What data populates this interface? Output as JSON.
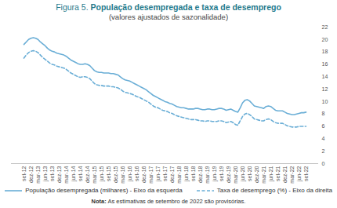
{
  "chart_data": {
    "type": "line",
    "title": "Figura 5. População desempregada e taxa de desemprego",
    "subtitle": "(valores ajustados de sazonalidade)",
    "caption": "Nota: As estimativas de setembro de 2022 são provisórias.",
    "categories": [
      "set-12",
      null,
      null,
      "dez-12",
      null,
      null,
      "mar-13",
      null,
      null,
      "jun-13",
      null,
      null,
      "set-13",
      null,
      null,
      "dez-13",
      null,
      null,
      "mar-14",
      null,
      null,
      "jun-14",
      null,
      null,
      "set-14",
      null,
      null,
      "dez-14",
      null,
      null,
      "mar-15",
      null,
      null,
      "jun-15",
      null,
      null,
      "set-15",
      null,
      null,
      "dez-15",
      null,
      null,
      "mar-16",
      null,
      null,
      "jun-16",
      null,
      null,
      "set-16",
      null,
      null,
      "dez-16",
      null,
      null,
      "mar-17",
      null,
      null,
      "jun-17",
      null,
      null,
      "set-17",
      null,
      null,
      "dez-17",
      null,
      null,
      "mar-18",
      null,
      null,
      "jun-18",
      null,
      null,
      "set-18",
      null,
      null,
      "dez-18",
      null,
      null,
      "mar-19",
      null,
      null,
      "jun-19",
      null,
      null,
      "set-19",
      null,
      null,
      "dez-19",
      null,
      null,
      "mar-20",
      null,
      null,
      "jun-20",
      null,
      null,
      "set-20",
      null,
      null,
      "dez-20",
      null,
      null,
      "mar-21",
      null,
      null,
      "jun-21",
      null,
      null,
      "set-21",
      null,
      null,
      "dez-21",
      null,
      null,
      "mar-22",
      null,
      null,
      "jun-22",
      null,
      null,
      "set-22"
    ],
    "series": [
      {
        "name": "População desempregada (milhares) - Eixo da esquerda",
        "color": "#6aaed6",
        "line_style": "solid",
        "values": [
          19.2,
          19.6,
          20.0,
          20.2,
          20.3,
          20.2,
          20.0,
          19.6,
          19.3,
          19.0,
          18.6,
          18.3,
          18.1,
          18.0,
          17.8,
          17.7,
          17.6,
          17.5,
          17.3,
          17.0,
          16.7,
          16.5,
          16.3,
          16.1,
          16.0,
          16.0,
          16.1,
          16.0,
          15.8,
          15.4,
          15.0,
          14.8,
          14.7,
          14.7,
          14.6,
          14.6,
          14.6,
          14.5,
          14.5,
          14.4,
          14.3,
          14.0,
          13.7,
          13.5,
          13.4,
          13.3,
          13.1,
          12.9,
          12.7,
          12.5,
          12.3,
          12.1,
          11.9,
          11.6,
          11.3,
          11.0,
          10.8,
          10.6,
          10.4,
          10.2,
          10.0,
          9.9,
          9.7,
          9.6,
          9.4,
          9.2,
          9.1,
          9.0,
          9.0,
          8.9,
          8.8,
          8.8,
          8.8,
          8.9,
          8.9,
          8.8,
          8.7,
          8.7,
          8.8,
          8.8,
          8.7,
          8.7,
          8.8,
          8.9,
          8.9,
          8.8,
          8.6,
          8.7,
          8.8,
          8.6,
          8.4,
          8.3,
          9.0,
          9.8,
          10.2,
          10.3,
          10.1,
          9.7,
          9.3,
          9.2,
          9.1,
          9.0,
          8.9,
          9.2,
          9.3,
          9.2,
          8.9,
          8.6,
          8.5,
          8.5,
          8.5,
          8.3,
          8.1,
          8.0,
          7.9,
          7.9,
          8.0,
          8.1,
          8.2,
          8.2,
          8.3
        ]
      },
      {
        "name": "Taxa de desemprego (%) - Eixo da direita",
        "color": "#6aaed6",
        "line_style": "dashed",
        "values": [
          17.0,
          17.5,
          17.9,
          18.1,
          18.2,
          18.1,
          17.9,
          17.5,
          17.1,
          16.8,
          16.5,
          16.2,
          16.0,
          15.9,
          15.7,
          15.6,
          15.5,
          15.4,
          15.2,
          14.9,
          14.6,
          14.4,
          14.2,
          14.0,
          13.9,
          14.0,
          14.0,
          13.9,
          13.7,
          13.3,
          12.9,
          12.7,
          12.6,
          12.6,
          12.5,
          12.5,
          12.5,
          12.4,
          12.4,
          12.3,
          12.2,
          12.0,
          11.7,
          11.5,
          11.4,
          11.3,
          11.2,
          11.0,
          10.8,
          10.7,
          10.5,
          10.3,
          10.1,
          9.9,
          9.6,
          9.3,
          9.1,
          9.0,
          8.8,
          8.6,
          8.5,
          8.4,
          8.2,
          8.1,
          7.9,
          7.7,
          7.6,
          7.5,
          7.4,
          7.3,
          7.2,
          7.1,
          7.1,
          7.1,
          7.0,
          6.9,
          6.9,
          6.8,
          6.9,
          6.9,
          6.8,
          6.8,
          6.8,
          6.9,
          6.9,
          6.8,
          6.6,
          6.7,
          6.8,
          6.6,
          6.3,
          6.2,
          6.9,
          7.6,
          8.0,
          8.1,
          7.9,
          7.6,
          7.2,
          7.1,
          7.0,
          6.9,
          6.9,
          7.1,
          7.2,
          7.1,
          6.8,
          6.6,
          6.5,
          6.5,
          6.5,
          6.3,
          6.1,
          6.0,
          5.9,
          5.9,
          5.9,
          6.0,
          6.0,
          6.0,
          6.0
        ]
      }
    ],
    "ylim": [
      0,
      22
    ],
    "yticks": [
      0,
      2,
      4,
      6,
      8,
      10,
      12,
      14,
      16,
      18,
      20,
      22
    ],
    "grid": false,
    "legend": "bottom"
  }
}
